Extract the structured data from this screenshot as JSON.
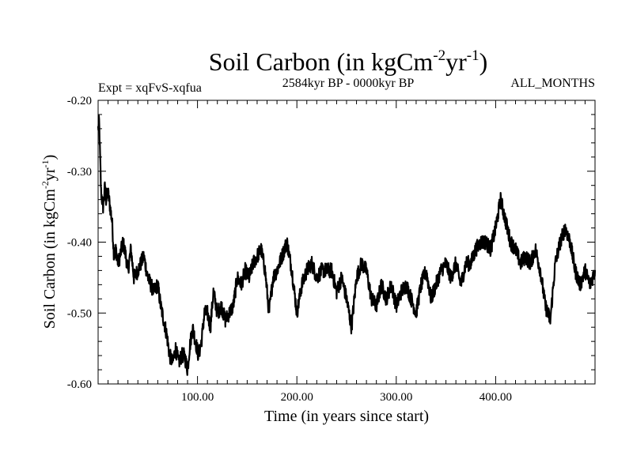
{
  "chart_data": {
    "type": "line",
    "title_main": "Soil Carbon (in kgCm",
    "title_sup1": "-2",
    "title_mid": "yr",
    "title_sup2": "-1",
    "title_end": ")",
    "expt_label": "Expt = xqFvS-xqfua",
    "period_label": "2584kyr BP - 0000kyr BP",
    "months_label": "ALL_MONTHS",
    "xlabel": "Time (in years since start)",
    "ylabel_main": "Soil Carbon (in kgCm",
    "ylabel_sup1": "-2",
    "ylabel_mid": "yr",
    "ylabel_sup2": "-1",
    "ylabel_end": ")",
    "xlim": [
      0,
      500
    ],
    "ylim": [
      -0.6,
      -0.2
    ],
    "xticks": [
      {
        "value": 100,
        "label": "100.00"
      },
      {
        "value": 200,
        "label": "200.00"
      },
      {
        "value": 300,
        "label": "300.00"
      },
      {
        "value": 400,
        "label": "400.00"
      }
    ],
    "yticks": [
      {
        "value": -0.2,
        "label": "-0.20"
      },
      {
        "value": -0.3,
        "label": "-0.30"
      },
      {
        "value": -0.4,
        "label": "-0.40"
      },
      {
        "value": -0.5,
        "label": "-0.50"
      },
      {
        "value": -0.6,
        "label": "-0.60"
      }
    ],
    "series": [
      {
        "name": "Soil Carbon",
        "color": "#000000",
        "x": [
          0,
          1,
          2,
          3,
          5,
          7,
          8,
          10,
          12,
          14,
          16,
          18,
          20,
          22,
          25,
          28,
          30,
          33,
          36,
          40,
          43,
          46,
          50,
          53,
          56,
          60,
          63,
          66,
          69,
          72,
          75,
          78,
          81,
          84,
          87,
          90,
          92,
          95,
          98,
          101,
          104,
          107,
          110,
          113,
          116,
          120,
          124,
          128,
          132,
          136,
          140,
          144,
          148,
          152,
          156,
          160,
          164,
          168,
          172,
          176,
          180,
          185,
          190,
          195,
          200,
          205,
          210,
          215,
          220,
          225,
          230,
          235,
          240,
          245,
          250,
          255,
          260,
          265,
          270,
          275,
          280,
          285,
          290,
          295,
          300,
          305,
          310,
          315,
          320,
          325,
          330,
          335,
          340,
          345,
          350,
          355,
          360,
          365,
          370,
          375,
          380,
          385,
          390,
          395,
          400,
          405,
          410,
          415,
          420,
          425,
          430,
          435,
          440,
          445,
          450,
          455,
          460,
          465,
          470,
          475,
          480,
          485,
          490,
          495,
          500
        ],
        "y": [
          -0.24,
          -0.23,
          -0.28,
          -0.33,
          -0.35,
          -0.32,
          -0.34,
          -0.33,
          -0.35,
          -0.37,
          -0.42,
          -0.41,
          -0.43,
          -0.42,
          -0.4,
          -0.42,
          -0.44,
          -0.41,
          -0.45,
          -0.44,
          -0.43,
          -0.42,
          -0.45,
          -0.46,
          -0.47,
          -0.46,
          -0.49,
          -0.51,
          -0.53,
          -0.56,
          -0.57,
          -0.55,
          -0.57,
          -0.56,
          -0.56,
          -0.58,
          -0.55,
          -0.52,
          -0.54,
          -0.56,
          -0.54,
          -0.5,
          -0.5,
          -0.52,
          -0.47,
          -0.5,
          -0.49,
          -0.51,
          -0.5,
          -0.49,
          -0.45,
          -0.46,
          -0.44,
          -0.45,
          -0.43,
          -0.42,
          -0.41,
          -0.44,
          -0.5,
          -0.45,
          -0.44,
          -0.42,
          -0.4,
          -0.44,
          -0.5,
          -0.46,
          -0.44,
          -0.43,
          -0.45,
          -0.44,
          -0.44,
          -0.44,
          -0.47,
          -0.45,
          -0.48,
          -0.52,
          -0.45,
          -0.43,
          -0.44,
          -0.48,
          -0.49,
          -0.46,
          -0.48,
          -0.46,
          -0.49,
          -0.47,
          -0.46,
          -0.48,
          -0.5,
          -0.46,
          -0.44,
          -0.48,
          -0.46,
          -0.44,
          -0.43,
          -0.45,
          -0.43,
          -0.46,
          -0.43,
          -0.43,
          -0.41,
          -0.4,
          -0.4,
          -0.41,
          -0.38,
          -0.34,
          -0.37,
          -0.4,
          -0.41,
          -0.43,
          -0.42,
          -0.43,
          -0.41,
          -0.44,
          -0.49,
          -0.51,
          -0.43,
          -0.4,
          -0.38,
          -0.4,
          -0.44,
          -0.46,
          -0.44,
          -0.46,
          -0.44
        ]
      }
    ]
  }
}
